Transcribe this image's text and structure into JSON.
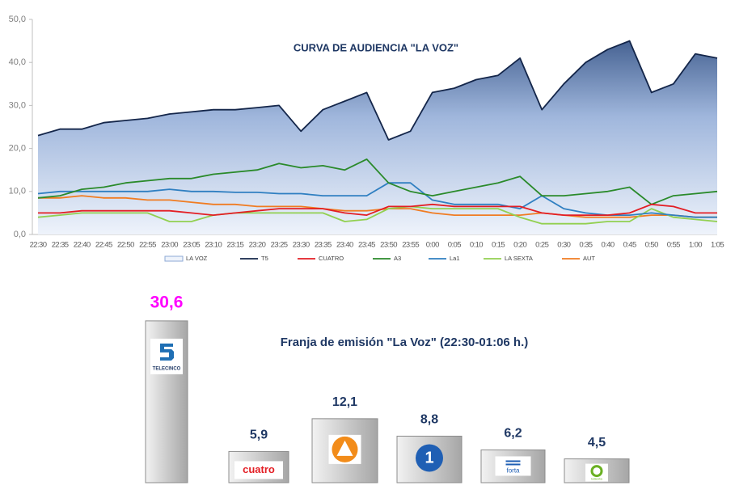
{
  "chart_data": [
    {
      "type": "line",
      "title": "CURVA DE AUDIENCIA \"LA VOZ\"",
      "categories": [
        "22:30",
        "22:35",
        "22:40",
        "22:45",
        "22:50",
        "22:55",
        "23:00",
        "23:05",
        "23:10",
        "23:15",
        "23:20",
        "23:25",
        "23:30",
        "23:35",
        "23:40",
        "23:45",
        "23:50",
        "23:55",
        "0:00",
        "0:05",
        "0:10",
        "0:15",
        "0:20",
        "0:25",
        "0:30",
        "0:35",
        "0:40",
        "0:45",
        "0:50",
        "0:55",
        "1:00",
        "1:05"
      ],
      "ylim": [
        0,
        50
      ],
      "yticks": [
        {
          "value": 0,
          "label": "0,0"
        },
        {
          "value": 10,
          "label": "10,0"
        },
        {
          "value": 20,
          "label": "20,0"
        },
        {
          "value": 30,
          "label": "30,0"
        },
        {
          "value": 40,
          "label": "40,0"
        },
        {
          "value": 50,
          "label": "50,0"
        }
      ],
      "series": [
        {
          "name": "LA VOZ",
          "color": "#1f3864",
          "area": true,
          "values": [
            23,
            24.5,
            24.5,
            26,
            26.5,
            27,
            28,
            28.5,
            29,
            29,
            29.5,
            30,
            24,
            29,
            31,
            33,
            22,
            24,
            33,
            34,
            36,
            37,
            41,
            29,
            35,
            40,
            43,
            45,
            33,
            35,
            42,
            41
          ]
        },
        {
          "name": "T5",
          "color": "#14264a",
          "values": [
            23,
            24.5,
            24.5,
            26,
            26.5,
            27,
            28,
            28.5,
            29,
            29,
            29.5,
            30,
            24,
            29,
            31,
            33,
            22,
            24,
            33,
            34,
            36,
            37,
            41,
            29,
            35,
            40,
            43,
            45,
            33,
            35,
            42,
            41
          ]
        },
        {
          "name": "CUATRO",
          "color": "#e31e24",
          "values": [
            5,
            5,
            5.5,
            5.5,
            5.5,
            5.5,
            5.5,
            5,
            4.5,
            5,
            5.5,
            6,
            6,
            6,
            5,
            4.5,
            6.5,
            6.5,
            7,
            6.5,
            6.5,
            6.5,
            6.5,
            5,
            4.5,
            4.5,
            4.5,
            5,
            7,
            6.5,
            5,
            5
          ]
        },
        {
          "name": "A3",
          "color": "#2a8a2a",
          "values": [
            8.5,
            9,
            10.5,
            11,
            12,
            12.5,
            13,
            13,
            14,
            14.5,
            15,
            16.5,
            15.5,
            16,
            15,
            17.5,
            12,
            10,
            9,
            10,
            11,
            12,
            13.5,
            9,
            9,
            9.5,
            10,
            11,
            7,
            9,
            9.5,
            10
          ]
        },
        {
          "name": "La1",
          "color": "#2f7fc1",
          "values": [
            9.5,
            10,
            10,
            10,
            10,
            10,
            10.5,
            10,
            10,
            9.8,
            9.8,
            9.5,
            9.5,
            9,
            9,
            9,
            12,
            12,
            8,
            7,
            7,
            7,
            6,
            9,
            6,
            5,
            4.5,
            4.5,
            5,
            4.5,
            4,
            4
          ]
        },
        {
          "name": "LA SEXTA",
          "color": "#92d050",
          "values": [
            4,
            4.5,
            5,
            5,
            5,
            5,
            3,
            3,
            4.5,
            5,
            5,
            5,
            5,
            5,
            3,
            3.5,
            6,
            6.5,
            6,
            6,
            6,
            6,
            4,
            2.5,
            2.5,
            2.5,
            3,
            3,
            6,
            4,
            3.5,
            3
          ]
        },
        {
          "name": "AUT",
          "color": "#f07c22",
          "values": [
            8.5,
            8.5,
            9,
            8.5,
            8.5,
            8,
            8,
            7.5,
            7,
            7,
            6.5,
            6.5,
            6.5,
            6,
            5.5,
            5.5,
            6,
            6,
            5,
            4.5,
            4.5,
            4.5,
            4.5,
            5,
            4.5,
            4,
            4,
            4,
            4.5,
            4.5,
            4,
            4
          ]
        }
      ]
    },
    {
      "type": "bar",
      "title": "Franja de emisión \"La Voz\" (22:30-01:06 h.)",
      "categories": [
        "TELECINCO",
        "cuatro",
        null,
        "1",
        "forta",
        "laSexta"
      ],
      "values": [
        30.6,
        5.9,
        12.1,
        8.8,
        6.2,
        4.5
      ],
      "value_labels": [
        "30,6",
        "5,9",
        "12,1",
        "8,8",
        "6,2",
        "4,5"
      ],
      "value_label_colors": [
        "#ff00ff",
        "#1f3864",
        "#1f3864",
        "#1f3864",
        "#1f3864",
        "#1f3864"
      ]
    }
  ]
}
